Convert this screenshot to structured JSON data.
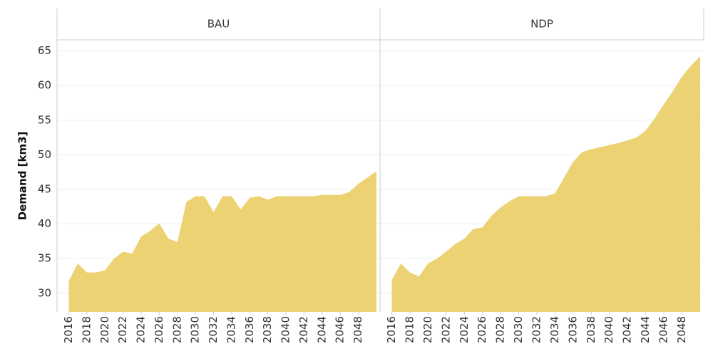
{
  "chart_data": [
    {
      "type": "area",
      "title": "BAU",
      "y_label": "Demand [km3]",
      "color": "#ecd272",
      "x": [
        2016,
        2017,
        2018,
        2019,
        2020,
        2021,
        2022,
        2023,
        2024,
        2025,
        2026,
        2027,
        2028,
        2029,
        2030,
        2031,
        2032,
        2033,
        2034,
        2035,
        2036,
        2037,
        2038,
        2039,
        2040,
        2041,
        2042,
        2043,
        2044,
        2045,
        2046,
        2047,
        2048,
        2049,
        2050
      ],
      "values": [
        31.8,
        34.3,
        33.0,
        33.0,
        33.3,
        35.0,
        36.0,
        35.7,
        38.2,
        39.0,
        40.1,
        37.9,
        37.4,
        43.2,
        44.0,
        44.0,
        41.7,
        44.0,
        44.0,
        42.1,
        43.8,
        44.0,
        43.5,
        44.0,
        44.0,
        44.0,
        44.0,
        44.0,
        44.2,
        44.2,
        44.2,
        44.6,
        45.8,
        46.7,
        47.6
      ],
      "xlim": [
        2014.7,
        2050.4
      ],
      "ylim": [
        27.3,
        66.6
      ],
      "xticks": [
        2016,
        2018,
        2020,
        2022,
        2024,
        2026,
        2028,
        2030,
        2032,
        2034,
        2036,
        2038,
        2040,
        2042,
        2044,
        2046,
        2048
      ],
      "yticks": [
        30,
        35,
        40,
        45,
        50,
        55,
        60,
        65
      ],
      "grid": true
    },
    {
      "type": "area",
      "title": "NDP",
      "color": "#ecd272",
      "x": [
        2016,
        2017,
        2018,
        2019,
        2020,
        2021,
        2022,
        2023,
        2024,
        2025,
        2026,
        2027,
        2028,
        2029,
        2030,
        2031,
        2032,
        2033,
        2034,
        2035,
        2036,
        2037,
        2038,
        2039,
        2040,
        2041,
        2042,
        2043,
        2044,
        2045,
        2046,
        2047,
        2048,
        2049,
        2050
      ],
      "values": [
        31.9,
        34.3,
        33.0,
        32.4,
        34.3,
        35.0,
        36.0,
        37.1,
        37.9,
        39.3,
        39.5,
        41.2,
        42.4,
        43.3,
        44.0,
        44.0,
        44.0,
        44.0,
        44.4,
        46.7,
        49.0,
        50.4,
        50.8,
        51.1,
        51.4,
        51.7,
        52.1,
        52.5,
        53.5,
        55.3,
        57.3,
        59.2,
        61.3,
        62.9,
        64.2
      ],
      "xlim": [
        2014.7,
        2050.4
      ],
      "ylim": [
        27.3,
        66.6
      ],
      "xticks": [
        2016,
        2018,
        2020,
        2022,
        2024,
        2026,
        2028,
        2030,
        2032,
        2034,
        2036,
        2038,
        2040,
        2042,
        2044,
        2046,
        2048
      ],
      "yticks": [
        30,
        35,
        40,
        45,
        50,
        55,
        60,
        65
      ],
      "grid": true
    }
  ]
}
